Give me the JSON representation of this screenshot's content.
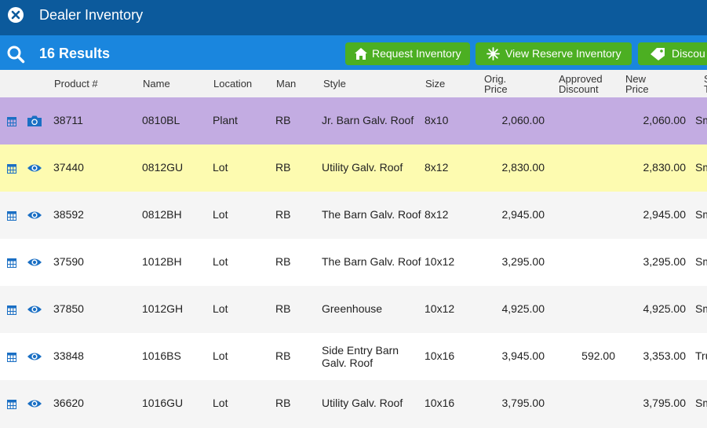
{
  "window": {
    "title": "Dealer Inventory"
  },
  "toolbar": {
    "results": "16 Results",
    "buttons": {
      "request": "Request Inventory",
      "reserve": "View Reserve Inventory",
      "discount": "Discou"
    }
  },
  "table": {
    "headers": {
      "product": "Product #",
      "name": "Name",
      "location": "Location",
      "man": "Man",
      "style": "Style",
      "size": "Size",
      "orig_price_1": "Orig.",
      "orig_price_2": "Price",
      "approved_1": "Approved",
      "approved_2": "Discount",
      "new_price_1": "New",
      "new_price_2": "Price",
      "extra_1": "S",
      "extra_2": "T"
    },
    "rows": [
      {
        "product": "38711",
        "name": "0810BL",
        "location": "Plant",
        "man": "RB",
        "style": "Jr. Barn Galv. Roof",
        "size": "8x10",
        "orig": "2,060.00",
        "discount": "",
        "new": "2,060.00",
        "extra": "Sm",
        "icon": "camera-icon",
        "bg": "#c3ace2"
      },
      {
        "product": "37440",
        "name": "0812GU",
        "location": "Lot",
        "man": "RB",
        "style": "Utility Galv. Roof",
        "size": "8x12",
        "orig": "2,830.00",
        "discount": "",
        "new": "2,830.00",
        "extra": "Sm",
        "icon": "eye-icon",
        "bg": "#fdfbb0"
      },
      {
        "product": "38592",
        "name": "0812BH",
        "location": "Lot",
        "man": "RB",
        "style": "The Barn Galv. Roof",
        "size": "8x12",
        "orig": "2,945.00",
        "discount": "",
        "new": "2,945.00",
        "extra": "Sm",
        "icon": "eye-icon",
        "bg": "#f5f5f5"
      },
      {
        "product": "37590",
        "name": "1012BH",
        "location": "Lot",
        "man": "RB",
        "style": "The Barn Galv. Roof",
        "size": "10x12",
        "orig": "3,295.00",
        "discount": "",
        "new": "3,295.00",
        "extra": "Sm",
        "icon": "eye-icon",
        "bg": "#ffffff"
      },
      {
        "product": "37850",
        "name": "1012GH",
        "location": "Lot",
        "man": "RB",
        "style": "Greenhouse",
        "size": "10x12",
        "orig": "4,925.00",
        "discount": "",
        "new": "4,925.00",
        "extra": "Sm",
        "icon": "eye-icon",
        "bg": "#f5f5f5"
      },
      {
        "product": "33848",
        "name": "1016BS",
        "location": "Lot",
        "man": "RB",
        "style": "Side Entry Barn Galv. Roof",
        "size": "10x16",
        "orig": "3,945.00",
        "discount": "592.00",
        "new": "3,353.00",
        "extra": "Tru",
        "icon": "eye-icon",
        "bg": "#ffffff"
      },
      {
        "product": "36620",
        "name": "1016GU",
        "location": "Lot",
        "man": "RB",
        "style": "Utility Galv. Roof",
        "size": "10x16",
        "orig": "3,795.00",
        "discount": "",
        "new": "3,795.00",
        "extra": "Sm",
        "icon": "eye-icon",
        "bg": "#f5f5f5"
      }
    ]
  }
}
